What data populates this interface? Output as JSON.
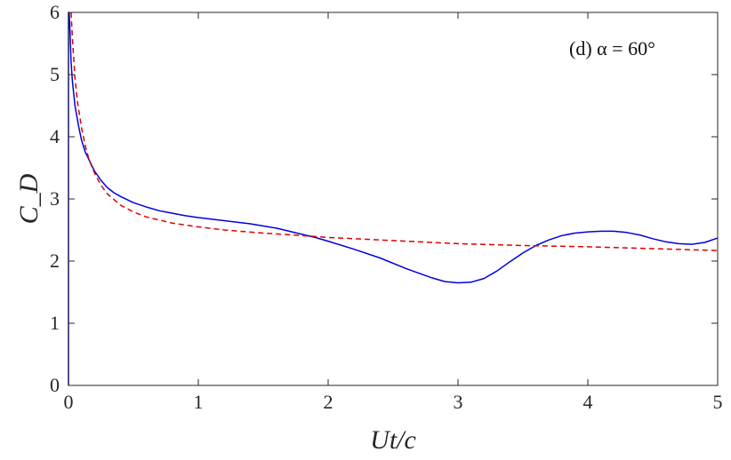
{
  "chart_data": {
    "type": "line",
    "title": "",
    "xlabel": "Ut/c",
    "ylabel": "C_D",
    "xlim": [
      0,
      5
    ],
    "ylim": [
      0,
      6
    ],
    "xticks": [
      0,
      1,
      2,
      3,
      4,
      5
    ],
    "yticks": [
      0,
      1,
      2,
      3,
      4,
      5,
      6
    ],
    "grid": false,
    "annotation": "(d) α = 60°",
    "series": [
      {
        "style": "solid",
        "color": "#0000dd",
        "x": [
          0,
          0,
          0.005,
          0.01,
          0.02,
          0.03,
          0.05,
          0.08,
          0.1,
          0.13,
          0.17,
          0.2,
          0.25,
          0.3,
          0.35,
          0.4,
          0.5,
          0.6,
          0.7,
          0.8,
          0.9,
          1.0,
          1.2,
          1.4,
          1.6,
          1.7,
          1.8,
          1.9,
          2.0,
          2.2,
          2.4,
          2.6,
          2.8,
          2.9,
          3.0,
          3.1,
          3.2,
          3.3,
          3.4,
          3.5,
          3.6,
          3.7,
          3.8,
          3.9,
          4.0,
          4.1,
          4.2,
          4.3,
          4.4,
          4.5,
          4.6,
          4.7,
          4.8,
          4.9,
          5.0
        ],
        "y": [
          0,
          6,
          6,
          5.8,
          5.2,
          4.9,
          4.5,
          4.15,
          3.95,
          3.75,
          3.58,
          3.45,
          3.3,
          3.18,
          3.1,
          3.04,
          2.94,
          2.87,
          2.81,
          2.77,
          2.73,
          2.7,
          2.65,
          2.6,
          2.53,
          2.48,
          2.43,
          2.38,
          2.32,
          2.19,
          2.05,
          1.88,
          1.73,
          1.67,
          1.65,
          1.66,
          1.72,
          1.84,
          1.99,
          2.13,
          2.25,
          2.34,
          2.41,
          2.45,
          2.47,
          2.48,
          2.48,
          2.46,
          2.42,
          2.36,
          2.31,
          2.28,
          2.27,
          2.3,
          2.37
        ]
      },
      {
        "style": "dashed",
        "color": "#dd0000",
        "x": [
          0.02,
          0.03,
          0.05,
          0.07,
          0.1,
          0.13,
          0.16,
          0.2,
          0.25,
          0.3,
          0.4,
          0.5,
          0.6,
          0.8,
          1.0,
          1.2,
          1.5,
          1.8,
          2.0,
          2.5,
          3.0,
          3.5,
          4.0,
          4.5,
          5.0
        ],
        "y": [
          6,
          5.6,
          4.95,
          4.55,
          4.15,
          3.85,
          3.62,
          3.42,
          3.22,
          3.08,
          2.9,
          2.79,
          2.71,
          2.61,
          2.55,
          2.5,
          2.45,
          2.41,
          2.38,
          2.33,
          2.28,
          2.25,
          2.23,
          2.2,
          2.17
        ]
      }
    ]
  }
}
